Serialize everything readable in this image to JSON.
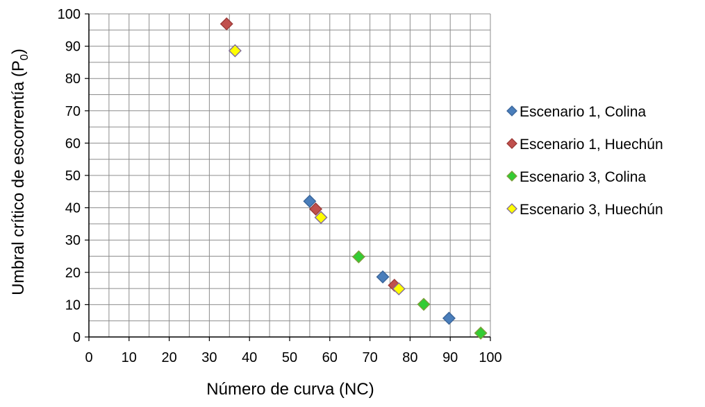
{
  "chart_data": {
    "type": "scatter",
    "title": "",
    "xlabel": "Número de curva (NC)",
    "ylabel": "Umbral crítico de escorrentía (P",
    "ylabel_subscript": "0",
    "ylabel_suffix": ")",
    "xlim": [
      0,
      100
    ],
    "ylim": [
      0,
      100
    ],
    "x_major_ticks": [
      0,
      10,
      20,
      30,
      40,
      50,
      60,
      70,
      80,
      90,
      100
    ],
    "y_major_ticks": [
      0,
      10,
      20,
      30,
      40,
      50,
      60,
      70,
      80,
      90,
      100
    ],
    "x_minor_step": 5,
    "y_minor_step": 5,
    "grid": true,
    "legend_position": "right",
    "series": [
      {
        "name": "Escenario 1, Colina",
        "color": "#4a7ebb",
        "border": "#3a659a",
        "points": [
          [
            55,
            42
          ],
          [
            73.2,
            18.6
          ],
          [
            89.7,
            5.8
          ]
        ]
      },
      {
        "name": "Escenario 1, Huechún",
        "color": "#c0504d",
        "border": "#9c3b38",
        "points": [
          [
            34.3,
            96.9
          ],
          [
            56.5,
            39.6
          ],
          [
            76.1,
            16
          ]
        ]
      },
      {
        "name": "Escenario 3, Colina",
        "color": "#33cc33",
        "border": "#7e9c3b",
        "points": [
          [
            67.2,
            24.8
          ],
          [
            83.4,
            10.1
          ],
          [
            97.6,
            1.2
          ]
        ]
      },
      {
        "name": "Escenario 3, Huechún",
        "color": "#ffff00",
        "border": "#7f6a9a",
        "points": [
          [
            36.4,
            88.6
          ],
          [
            57.8,
            37
          ],
          [
            77.2,
            14.9
          ]
        ]
      }
    ]
  }
}
